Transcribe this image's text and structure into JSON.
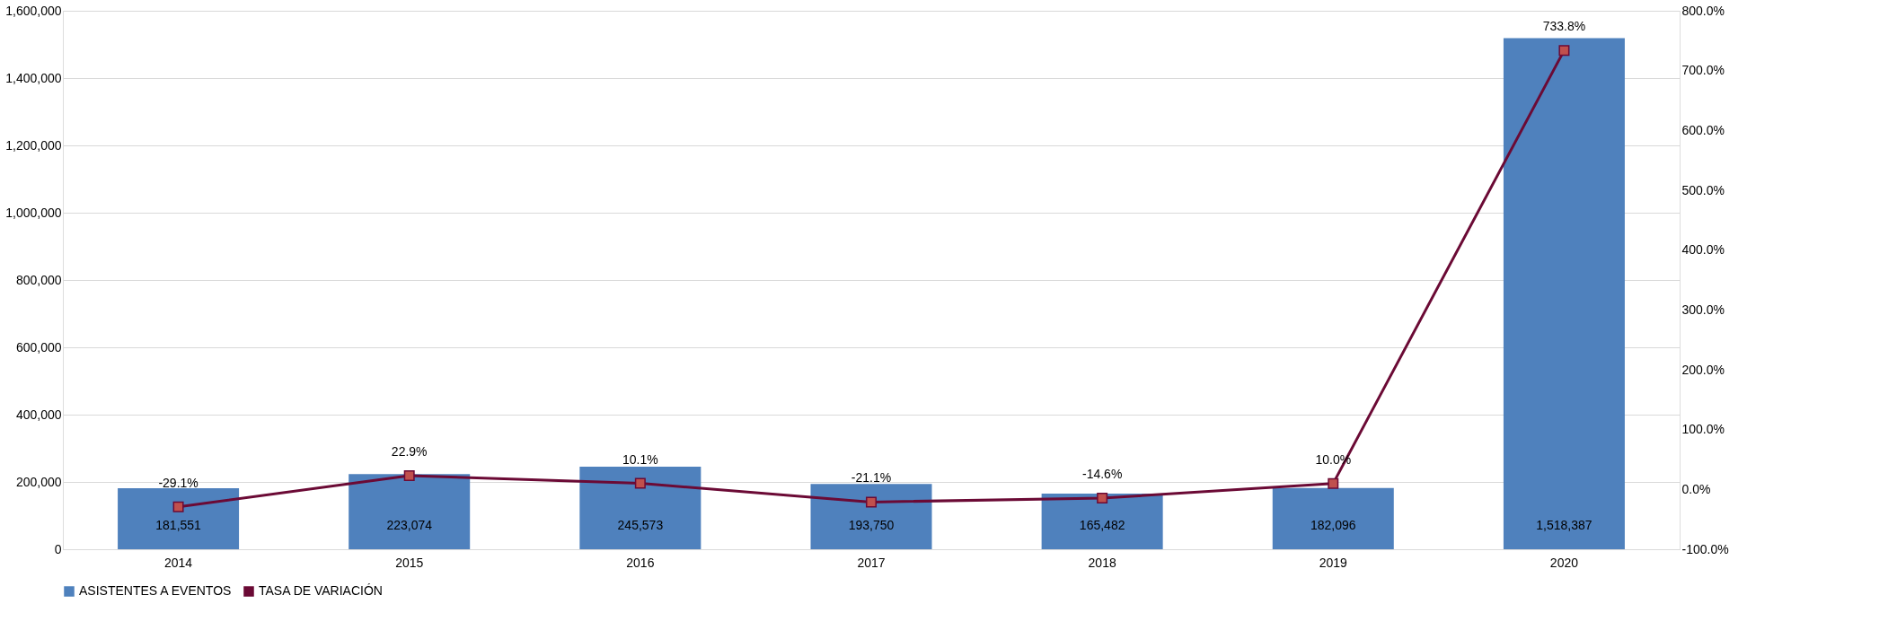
{
  "chart_data": {
    "type": "bar",
    "categories": [
      "2014",
      "2015",
      "2016",
      "2017",
      "2018",
      "2019",
      "2020"
    ],
    "series": [
      {
        "name": "ASISTENTES A EVENTOS",
        "color": "#4f81bd",
        "values": [
          181551,
          223074,
          245573,
          193750,
          165482,
          182096,
          1518387
        ],
        "value_labels": [
          "181,551",
          "223,074",
          "245,573",
          "193,750",
          "165,482",
          "182,096",
          "1,518,387"
        ]
      },
      {
        "name": "TASA DE VARIACIÓN",
        "type": "line",
        "axis": "y2",
        "color": "#6b0a35",
        "values": [
          -29.1,
          22.9,
          10.1,
          -21.1,
          -14.6,
          10.0,
          733.8
        ],
        "value_labels": [
          "-29.1%",
          "22.9%",
          "10.1%",
          "-21.1%",
          "-14.6%",
          "10.0%",
          "733.8%"
        ]
      }
    ],
    "ylim": [
      0,
      1600000
    ],
    "yticks": [
      {
        "value": 0,
        "label": "0"
      },
      {
        "value": 200000,
        "label": "200,000"
      },
      {
        "value": 400000,
        "label": "400,000"
      },
      {
        "value": 600000,
        "label": "600,000"
      },
      {
        "value": 800000,
        "label": "800,000"
      },
      {
        "value": 1000000,
        "label": "1,000,000"
      },
      {
        "value": 1200000,
        "label": "1,200,000"
      },
      {
        "value": 1400000,
        "label": "1,400,000"
      },
      {
        "value": 1600000,
        "label": "1,600,000"
      }
    ],
    "y2lim": [
      -100,
      800
    ],
    "y2ticks": [
      {
        "value": -100,
        "label": "-100.0%"
      },
      {
        "value": 0,
        "label": "0.0%"
      },
      {
        "value": 100,
        "label": "100.0%"
      },
      {
        "value": 200,
        "label": "200.0%"
      },
      {
        "value": 300,
        "label": "300.0%"
      },
      {
        "value": 400,
        "label": "400.0%"
      },
      {
        "value": 500,
        "label": "500.0%"
      },
      {
        "value": 600,
        "label": "600.0%"
      },
      {
        "value": 700,
        "label": "700.0%"
      },
      {
        "value": 800,
        "label": "800.0%"
      }
    ],
    "grid": "y",
    "legend": "bottom",
    "marker": "square"
  }
}
